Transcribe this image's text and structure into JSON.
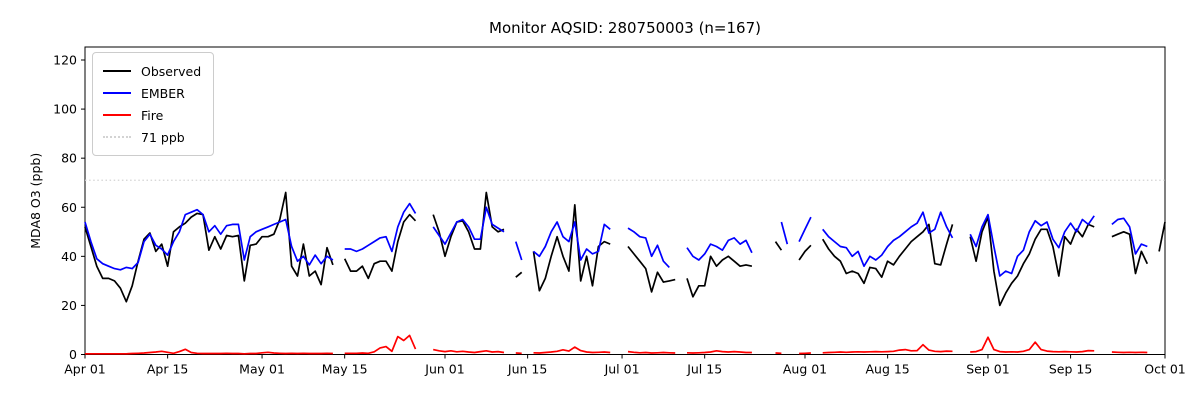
{
  "title": "Monitor AQSID: 280750003 (n=167)",
  "y_axis": {
    "label": "MDA8 O3 (ppb)",
    "ticks": [
      0,
      20,
      40,
      60,
      80,
      100,
      120
    ]
  },
  "x_axis": {
    "ticks": [
      {
        "day": 0,
        "label": "Apr 01"
      },
      {
        "day": 14,
        "label": "Apr 15"
      },
      {
        "day": 30,
        "label": "May 01"
      },
      {
        "day": 44,
        "label": "May 15"
      },
      {
        "day": 61,
        "label": "Jun 01"
      },
      {
        "day": 75,
        "label": "Jun 15"
      },
      {
        "day": 91,
        "label": "Jul 01"
      },
      {
        "day": 105,
        "label": "Jul 15"
      },
      {
        "day": 122,
        "label": "Aug 01"
      },
      {
        "day": 136,
        "label": "Aug 15"
      },
      {
        "day": 153,
        "label": "Sep 01"
      },
      {
        "day": 167,
        "label": "Sep 15"
      },
      {
        "day": 183,
        "label": "Oct 01"
      }
    ]
  },
  "legend": {
    "items": [
      {
        "label": "Observed",
        "color": "#000000",
        "dash": "solid"
      },
      {
        "label": "EMBER",
        "color": "#0000ff",
        "dash": "solid"
      },
      {
        "label": "Fire",
        "color": "#ff0000",
        "dash": "solid"
      },
      {
        "label": "71 ppb",
        "color": "#d3d3d3",
        "dash": "dotted"
      }
    ]
  },
  "chart_data": {
    "type": "line",
    "title": "Monitor AQSID: 280750003 (n=167)",
    "xlabel": "",
    "ylabel": "MDA8 O3 (ppb)",
    "x_unit": "days since Apr 01 (daily values, null = missing day)",
    "x_range": [
      0,
      183
    ],
    "ylim": [
      0,
      125.3
    ],
    "grid": false,
    "legend_position": "upper left",
    "reference_line": {
      "value": 71,
      "label": "71 ppb",
      "color": "#d3d3d3",
      "style": "dotted"
    },
    "series": [
      {
        "name": "Observed",
        "color": "#000000",
        "values": [
          52,
          44,
          36,
          31,
          31,
          30,
          27,
          21.5,
          28,
          38,
          47,
          49.5,
          42,
          45,
          36,
          50,
          52,
          53.5,
          56,
          57.5,
          57,
          42.5,
          48,
          43,
          48.5,
          48,
          48.5,
          30,
          44.5,
          45,
          48,
          48,
          49,
          55,
          66,
          36,
          32,
          45,
          32,
          34,
          28.5,
          43.5,
          36.5,
          null,
          39,
          34,
          34,
          36,
          31,
          37,
          38,
          38,
          34,
          46,
          54,
          57,
          54.5,
          null,
          null,
          57,
          50,
          40,
          48,
          54,
          54.5,
          50,
          43,
          43,
          66,
          52,
          50,
          51,
          null,
          31.5,
          33.5,
          null,
          42,
          26,
          31,
          40,
          48,
          40,
          34,
          61,
          30,
          40,
          28,
          44,
          46,
          45,
          null,
          null,
          44,
          41,
          38,
          35,
          25.5,
          33.5,
          29.5,
          30,
          30.5,
          null,
          31,
          23.5,
          28,
          28,
          40,
          36,
          38.5,
          40,
          38,
          36,
          36.5,
          36,
          null,
          null,
          null,
          46,
          42.5,
          null,
          null,
          38.5,
          42,
          44.5,
          null,
          47,
          43,
          40,
          38,
          33,
          34,
          33,
          29,
          35.5,
          35,
          31.5,
          38,
          36.5,
          40,
          43,
          46,
          48,
          50,
          53,
          37,
          36.5,
          45,
          53,
          null,
          null,
          48,
          38,
          50,
          56,
          34,
          20,
          25,
          29,
          32,
          37,
          41,
          47,
          51,
          51,
          44,
          32,
          48,
          45,
          51,
          48,
          53,
          52,
          null,
          null,
          48,
          49,
          50,
          49,
          33,
          42,
          37,
          null,
          42,
          54
        ]
      },
      {
        "name": "EMBER",
        "color": "#0000ff",
        "values": [
          54,
          46,
          39,
          37,
          36,
          35,
          34.5,
          35.5,
          35,
          37.5,
          46,
          49,
          44.5,
          43,
          40.5,
          46,
          50,
          57,
          58,
          59,
          57,
          50,
          52.5,
          49,
          52.5,
          53,
          53,
          38.5,
          48,
          50,
          51,
          52,
          53,
          54,
          55,
          44,
          38,
          40,
          36.5,
          40.5,
          37,
          40,
          38.5,
          null,
          43,
          43,
          42,
          43,
          44.5,
          46,
          47.5,
          48,
          42,
          52,
          58,
          61.5,
          57.5,
          null,
          null,
          52,
          48.5,
          45,
          49.5,
          54,
          55,
          52,
          47,
          47,
          60,
          53,
          51.5,
          50,
          null,
          46,
          38.5,
          null,
          42,
          40,
          44,
          50,
          54,
          48,
          46,
          54,
          38.5,
          43,
          41,
          42,
          53,
          51,
          null,
          null,
          51.5,
          50,
          48,
          47.5,
          40,
          44.5,
          38,
          35.5,
          null,
          null,
          43.5,
          40,
          38.5,
          41,
          45,
          44,
          42.5,
          46.5,
          47.5,
          45,
          46.5,
          41.5,
          null,
          null,
          null,
          null,
          54,
          45,
          null,
          46,
          51,
          56,
          null,
          51,
          48,
          46,
          44,
          43.5,
          40,
          42,
          36,
          40,
          38.5,
          40.5,
          44,
          46.5,
          48,
          50,
          52,
          53.5,
          58,
          49.5,
          51,
          58,
          52,
          47.5,
          null,
          null,
          49,
          44,
          52,
          57,
          44,
          32,
          34,
          33,
          40,
          42.5,
          50,
          54.5,
          52.5,
          54,
          47,
          43.5,
          50,
          53.5,
          50,
          55,
          53,
          56.5,
          null,
          null,
          53,
          55,
          55.5,
          52,
          41,
          45,
          44,
          null,
          null,
          null
        ]
      },
      {
        "name": "Fire",
        "color": "#ff0000",
        "values": [
          0.3,
          0.3,
          0.3,
          0.3,
          0.3,
          0.3,
          0.3,
          0.3,
          0.4,
          0.5,
          0.6,
          0.8,
          1.0,
          1.3,
          0.9,
          0.5,
          1.2,
          2.1,
          0.8,
          0.5,
          0.4,
          0.4,
          0.4,
          0.4,
          0.5,
          0.4,
          0.4,
          0.3,
          0.4,
          0.4,
          0.7,
          0.9,
          0.6,
          0.5,
          0.4,
          0.5,
          0.4,
          0.5,
          0.4,
          0.4,
          0.4,
          0.5,
          0.4,
          null,
          0.5,
          0.5,
          0.5,
          0.6,
          0.5,
          1.1,
          2.7,
          3.2,
          1.3,
          7.3,
          5.7,
          7.8,
          2.2,
          null,
          null,
          2.0,
          1.5,
          1.2,
          1.5,
          1.1,
          1.3,
          1.0,
          0.8,
          1.2,
          1.5,
          1.0,
          1.2,
          0.8,
          null,
          0.6,
          0.5,
          null,
          0.7,
          0.6,
          0.8,
          1.0,
          1.3,
          1.9,
          1.4,
          3.0,
          1.6,
          1.0,
          0.8,
          0.9,
          1.0,
          0.8,
          null,
          null,
          1.2,
          0.9,
          0.7,
          0.8,
          0.6,
          0.7,
          0.8,
          0.7,
          0.6,
          null,
          0.7,
          0.6,
          0.7,
          0.8,
          1.0,
          1.5,
          1.2,
          1.0,
          1.2,
          1.0,
          0.8,
          0.8,
          null,
          null,
          null,
          0.6,
          0.5,
          null,
          null,
          0.4,
          0.5,
          0.6,
          null,
          0.7,
          0.8,
          0.9,
          1.0,
          0.9,
          1.0,
          1.1,
          1.0,
          1.1,
          1.2,
          1.1,
          1.2,
          1.3,
          1.8,
          2.0,
          1.5,
          1.6,
          4.0,
          1.8,
          1.3,
          1.2,
          1.4,
          1.3,
          null,
          null,
          1.0,
          1.2,
          2.0,
          7.0,
          2.0,
          1.2,
          1.0,
          1.1,
          1.0,
          1.3,
          2.0,
          5.0,
          2.0,
          1.4,
          1.2,
          1.1,
          1.2,
          1.1,
          1.0,
          1.2,
          1.6,
          1.5,
          null,
          null,
          1.0,
          0.9,
          0.8,
          0.9,
          0.8,
          0.9,
          0.8,
          null,
          null,
          null
        ]
      }
    ]
  }
}
